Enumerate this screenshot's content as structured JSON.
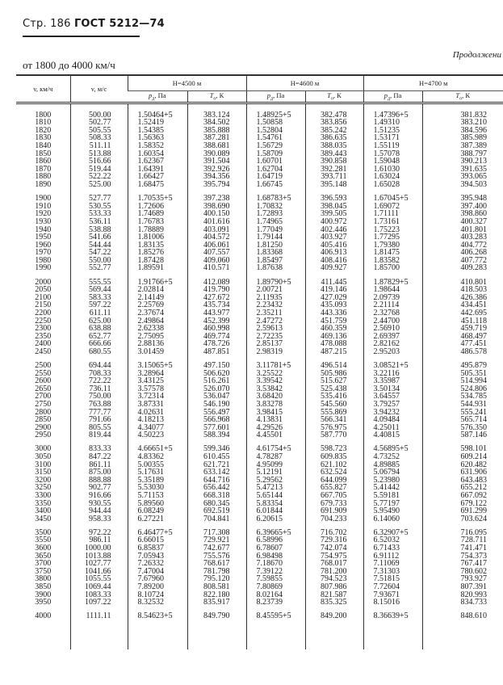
{
  "page_header": {
    "page": "Стр. 186",
    "standard": "ГОСТ 5212—74"
  },
  "continuation": "Продолжени",
  "range_title": "от 1800 до 4000 км/ч",
  "table": {
    "col_kmh": "v, км/ч",
    "col_ms": "v, м/с",
    "heights": [
      "H=4500 м",
      "H=4600 м",
      "H=4700 м"
    ],
    "sub_p": "p",
    "sub_p_index": "д",
    "sub_p_unit": ", Па",
    "sub_t": "T",
    "sub_t_index": "о",
    "sub_t_unit": ", К",
    "groups": [
      {
        "rows": [
          [
            "1800",
            "500.00",
            "1.50464+5",
            "383.124",
            "1.48925+5",
            "382.478",
            "1.47396+5",
            "381.832"
          ],
          [
            "1810",
            "502.77",
            "1.52419",
            "384.502",
            "1.50858",
            "383.856",
            "1.49310",
            "383.210"
          ],
          [
            "1820",
            "505.55",
            "1.54385",
            "385.888",
            "1.52804",
            "385.242",
            "1.51235",
            "384.596"
          ],
          [
            "1830",
            "508.33",
            "1.56363",
            "387.281",
            "1.54761",
            "386.635",
            "1.53171",
            "385.989"
          ],
          [
            "1840",
            "511.11",
            "1.58352",
            "388.681",
            "1.56729",
            "388.035",
            "1.55119",
            "387.389"
          ],
          [
            "1850",
            "513.88",
            "1.60354",
            "390.089",
            "1.58709",
            "389.443",
            "1.57078",
            "388.797"
          ],
          [
            "1860",
            "516.66",
            "1.62367",
            "391.504",
            "1.60701",
            "390.858",
            "1.59048",
            "390.213"
          ],
          [
            "1870",
            "519.44",
            "1.64391",
            "392.926",
            "1.62704",
            "392.281",
            "1.61030",
            "391.635"
          ],
          [
            "1880",
            "522.22",
            "1.66427",
            "394.356",
            "1.64719",
            "393.711",
            "1.63024",
            "393.065"
          ],
          [
            "1890",
            "525.00",
            "1.68475",
            "395.794",
            "1.66745",
            "395.148",
            "1.65028",
            "394.503"
          ]
        ]
      },
      {
        "rows": [
          [
            "1900",
            "527.77",
            "1.70535+5",
            "397.238",
            "1.68783+5",
            "396.593",
            "1.67045+5",
            "395.948"
          ],
          [
            "1910",
            "530.55",
            "1.72606",
            "398.690",
            "1.70832",
            "398.045",
            "1.69072",
            "397.400"
          ],
          [
            "1920",
            "533.33",
            "1.74689",
            "400.150",
            "1.72893",
            "399.505",
            "1.71111",
            "398.860"
          ],
          [
            "1930",
            "536.11",
            "1.76783",
            "401.616",
            "1.74965",
            "400.972",
            "1.73161",
            "400.327"
          ],
          [
            "1940",
            "538.88",
            "1.78889",
            "403.091",
            "1.77049",
            "402.446",
            "1.75223",
            "401.801"
          ],
          [
            "1950",
            "541.66",
            "1.81006",
            "404.572",
            "1.79144",
            "403.927",
            "1.77295",
            "403.283"
          ],
          [
            "1960",
            "544.44",
            "1.83135",
            "406.061",
            "1.81250",
            "405.416",
            "1.79380",
            "404.772"
          ],
          [
            "1970",
            "547.22",
            "1.85276",
            "407.557",
            "1.83368",
            "406.913",
            "1.81475",
            "406.268"
          ],
          [
            "1980",
            "550.00",
            "1.87428",
            "409.060",
            "1.85497",
            "408.416",
            "1.83582",
            "407.772"
          ],
          [
            "1990",
            "552.77",
            "1.89591",
            "410.571",
            "1.87638",
            "409.927",
            "1.85700",
            "409.283"
          ]
        ]
      },
      {
        "rows": [
          [
            "2000",
            "555.55",
            "1.91766+5",
            "412.089",
            "1.89790+5",
            "411.445",
            "1.87829+5",
            "410.801"
          ],
          [
            "2050",
            "569.44",
            "2.02814",
            "419.790",
            "2.00721",
            "419.146",
            "1.98644",
            "418.503"
          ],
          [
            "2100",
            "583.33",
            "2.14149",
            "427.672",
            "2.11935",
            "427.029",
            "2.09739",
            "426.386"
          ],
          [
            "2150",
            "597.22",
            "2.25769",
            "435.734",
            "2.23432",
            "435.093",
            "2.21114",
            "434.451"
          ],
          [
            "2200",
            "611.11",
            "2.37674",
            "443.977",
            "2.35211",
            "443.336",
            "2.32768",
            "442.695"
          ],
          [
            "2250",
            "625.00",
            "2.49864",
            "452.399",
            "2.47272",
            "451.759",
            "2.44700",
            "451.118"
          ],
          [
            "2300",
            "638.88",
            "2.62338",
            "460.998",
            "2.59613",
            "460.359",
            "2.56910",
            "459.719"
          ],
          [
            "2350",
            "652.77",
            "2.75095",
            "469.774",
            "2.72235",
            "469.136",
            "2.69397",
            "468.497"
          ],
          [
            "2400",
            "666.66",
            "2.88136",
            "478.726",
            "2.85137",
            "478.088",
            "2.82162",
            "477.451"
          ],
          [
            "2450",
            "680.55",
            "3.01459",
            "487.851",
            "2.98319",
            "487.215",
            "2.95203",
            "486.578"
          ]
        ]
      },
      {
        "rows": [
          [
            "2500",
            "694.44",
            "3.15065+5",
            "497.150",
            "3.11781+5",
            "496.514",
            "3.08521+5",
            "495.879"
          ],
          [
            "2550",
            "708.33",
            "3.28964",
            "506.620",
            "3.25522",
            "505.986",
            "3.22116",
            "505.351"
          ],
          [
            "2600",
            "722.22",
            "3.43125",
            "516.261",
            "3.39542",
            "515.627",
            "3.35987",
            "514.994"
          ],
          [
            "2650",
            "736.11",
            "3.57578",
            "526.070",
            "3.53842",
            "525.438",
            "3.50134",
            "524.806"
          ],
          [
            "2700",
            "750.00",
            "3.72314",
            "536.047",
            "3.68420",
            "535.416",
            "3.64557",
            "534.785"
          ],
          [
            "2750",
            "763.88",
            "3.87331",
            "546.190",
            "3.83278",
            "545.560",
            "3.79257",
            "544.931"
          ],
          [
            "2800",
            "777.77",
            "4.02631",
            "556.497",
            "3.98415",
            "555.869",
            "3.94232",
            "555.241"
          ],
          [
            "2850",
            "791.66",
            "4.18213",
            "566.968",
            "4.13831",
            "566.341",
            "4.09484",
            "565.714"
          ],
          [
            "2900",
            "805.55",
            "4.34077",
            "577.601",
            "4.29526",
            "576.975",
            "4.25011",
            "576.350"
          ],
          [
            "2950",
            "819.44",
            "4.50223",
            "588.394",
            "4.45501",
            "587.770",
            "4.40815",
            "587.146"
          ]
        ]
      },
      {
        "rows": [
          [
            "3000",
            "833.33",
            "4.66651+5",
            "599.346",
            "4.61754+5",
            "598.723",
            "4.56895+5",
            "598.101"
          ],
          [
            "3050",
            "847.22",
            "4.83362",
            "610.455",
            "4.78287",
            "609.835",
            "4.73252",
            "609.214"
          ],
          [
            "3100",
            "861.11",
            "5.00355",
            "621.721",
            "4.95099",
            "621.102",
            "4.89885",
            "620.482"
          ],
          [
            "3150",
            "875.00",
            "5.17631",
            "633.142",
            "5.12191",
            "632.524",
            "5.06794",
            "631.906"
          ],
          [
            "3200",
            "888.88",
            "5.35189",
            "644.716",
            "5.29562",
            "644.099",
            "5.23980",
            "643.483"
          ],
          [
            "3250",
            "902.77",
            "5.53030",
            "656.442",
            "5.47213",
            "655.827",
            "5.41442",
            "655.212"
          ],
          [
            "3300",
            "916.66",
            "5.71153",
            "668.318",
            "5.65144",
            "667.705",
            "5.59181",
            "667.092"
          ],
          [
            "3350",
            "930.55",
            "5.89560",
            "680.345",
            "5.83354",
            "679.733",
            "5.77197",
            "679.122"
          ],
          [
            "3400",
            "944.44",
            "6.08249",
            "692.519",
            "6.01844",
            "691.909",
            "5.95490",
            "691.299"
          ],
          [
            "3450",
            "958.33",
            "6.27221",
            "704.841",
            "6.20615",
            "704.233",
            "6.14060",
            "703.624"
          ]
        ]
      },
      {
        "rows": [
          [
            "3500",
            "972.22",
            "6.46477+5",
            "717.308",
            "6.39665+5",
            "716.702",
            "6.32907+5",
            "716.095"
          ],
          [
            "3550",
            "986.11",
            "6.66015",
            "729.921",
            "6.58996",
            "729.316",
            "6.52032",
            "728.711"
          ],
          [
            "3600",
            "1000.00",
            "6.85837",
            "742.677",
            "6.78607",
            "742.074",
            "6.71433",
            "741.471"
          ],
          [
            "3650",
            "1013.88",
            "7.05943",
            "755.576",
            "6.98498",
            "754.975",
            "6.91112",
            "754.373"
          ],
          [
            "3700",
            "1027.77",
            "7.26332",
            "768.617",
            "7.18670",
            "768.017",
            "7.11069",
            "767.417"
          ],
          [
            "3750",
            "1041.66",
            "7.47004",
            "781.798",
            "7.39122",
            "781.200",
            "7.31303",
            "780.602"
          ],
          [
            "3800",
            "1055.55",
            "7.67960",
            "795.120",
            "7.59855",
            "794.523",
            "7.51815",
            "793.927"
          ],
          [
            "3850",
            "1069.44",
            "7.89200",
            "808.581",
            "7.80869",
            "807.986",
            "7.72604",
            "807.391"
          ],
          [
            "3900",
            "1083.33",
            "8.10724",
            "822.180",
            "8.02164",
            "821.587",
            "7.93671",
            "820.993"
          ],
          [
            "3950",
            "1097.22",
            "8.32532",
            "835.917",
            "8.23739",
            "835.325",
            "8.15016",
            "834.733"
          ]
        ]
      },
      {
        "rows": [
          [
            "4000",
            "1111.11",
            "8.54623+5",
            "849.790",
            "8.45595+5",
            "849.200",
            "8.36639+5",
            "848.610"
          ]
        ]
      }
    ]
  }
}
